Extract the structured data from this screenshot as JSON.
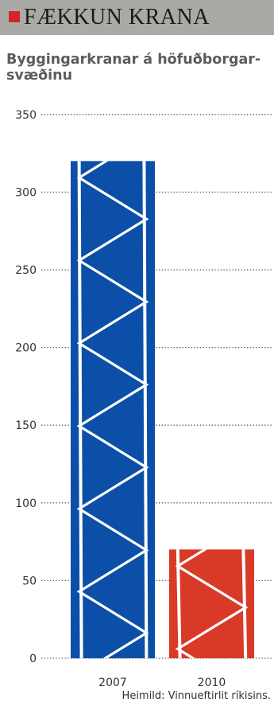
{
  "header": {
    "title": "FÆKKUN KRANA",
    "mark_color": "#d4242b",
    "background": "#a9a9a5"
  },
  "chart_data": {
    "type": "bar",
    "title": "FÆKKUN KRANA",
    "subtitle": "Byggingarkranar á höfuðborgar-svæðinu",
    "categories": [
      "2007",
      "2010"
    ],
    "values": [
      320,
      70
    ],
    "colors": [
      "#0b4fa8",
      "#d93a27"
    ],
    "bar_style": "crane-lattice",
    "xlabel": "",
    "ylabel": "",
    "ylim": [
      0,
      350
    ],
    "yticks": [
      0,
      50,
      100,
      150,
      200,
      250,
      300,
      350
    ],
    "grid": "dotted horizontal",
    "source": "Heimild: Vinnueftirlit ríkisins."
  }
}
